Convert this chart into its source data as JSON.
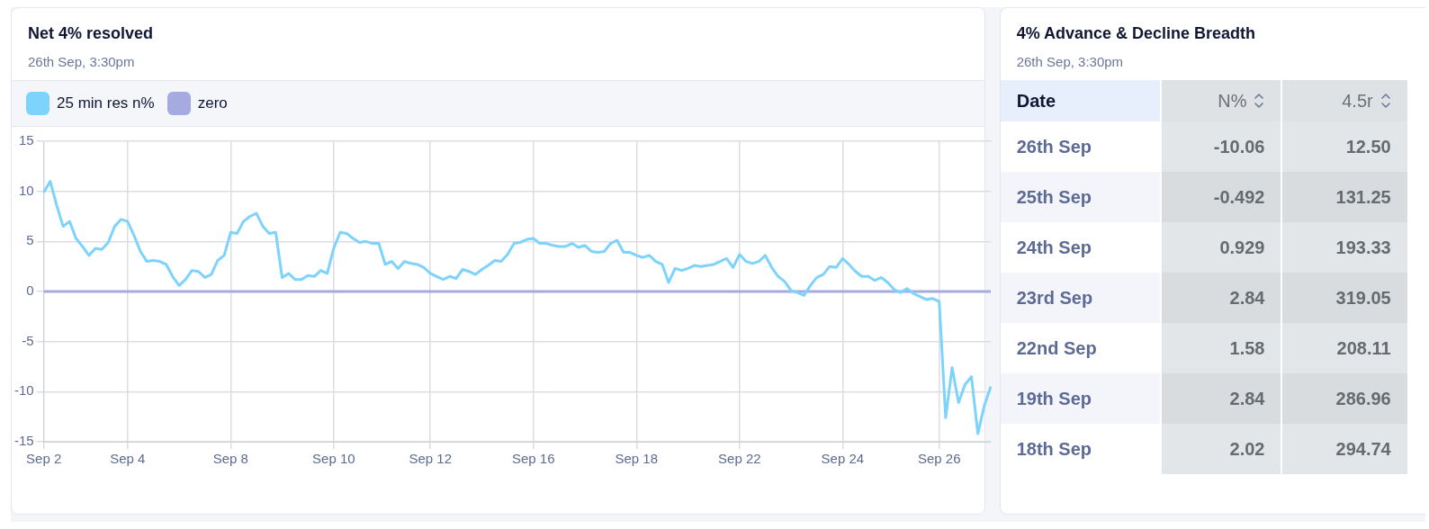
{
  "chart_data": [
    {
      "type": "line",
      "title": "Net 4% resolved",
      "subtitle": "26th Sep, 3:30pm",
      "legend": "top left",
      "grid": true,
      "ylim": [
        -15,
        15
      ],
      "yticks": [
        15,
        10,
        5,
        0,
        -5,
        -10,
        -15
      ],
      "categories": [
        "Sep 2",
        null,
        null,
        null,
        null,
        null,
        null,
        null,
        null,
        null,
        null,
        null,
        null,
        "Sep 4",
        null,
        null,
        null,
        null,
        null,
        null,
        null,
        null,
        null,
        null,
        null,
        null,
        null,
        null,
        null,
        "Sep 8",
        null,
        null,
        null,
        null,
        null,
        null,
        null,
        null,
        null,
        null,
        null,
        null,
        null,
        null,
        null,
        "Sep 10",
        null,
        null,
        null,
        null,
        null,
        null,
        null,
        null,
        null,
        null,
        null,
        null,
        null,
        null,
        "Sep 12",
        null,
        null,
        null,
        null,
        null,
        null,
        null,
        null,
        null,
        null,
        null,
        null,
        null,
        null,
        null,
        "Sep 16",
        null,
        null,
        null,
        null,
        null,
        null,
        null,
        null,
        null,
        null,
        null,
        null,
        null,
        null,
        null,
        "Sep 18",
        null,
        null,
        null,
        null,
        null,
        null,
        null,
        null,
        null,
        null,
        null,
        null,
        null,
        null,
        null,
        "Sep 22",
        null,
        null,
        null,
        null,
        null,
        null,
        null,
        null,
        null,
        null,
        null,
        null,
        null,
        null,
        null,
        "Sep 24",
        null,
        null,
        null,
        null,
        null,
        null,
        null,
        null,
        null,
        null,
        null,
        null,
        null,
        null,
        "Sep 26",
        null,
        null,
        null,
        null,
        null,
        null,
        null,
        null
      ],
      "series": [
        {
          "name": "25 min res n%",
          "color": "#7dd3fc",
          "values": [
            9.9,
            11.0,
            8.6,
            6.5,
            7.0,
            5.3,
            4.5,
            3.6,
            4.3,
            4.2,
            4.9,
            6.5,
            7.2,
            7.0,
            5.6,
            4.0,
            3.0,
            3.1,
            3.0,
            2.7,
            1.5,
            0.6,
            1.2,
            2.1,
            2.0,
            1.4,
            1.7,
            3.1,
            3.6,
            5.9,
            5.8,
            7.0,
            7.5,
            7.8,
            6.5,
            5.8,
            5.9,
            1.4,
            1.8,
            1.2,
            1.2,
            1.6,
            1.5,
            2.1,
            1.8,
            4.3,
            5.9,
            5.8,
            5.3,
            4.9,
            5.0,
            4.8,
            4.8,
            2.7,
            3.0,
            2.3,
            3.0,
            2.8,
            2.7,
            2.4,
            1.8,
            1.5,
            1.2,
            1.5,
            1.3,
            2.2,
            2.0,
            1.7,
            2.2,
            2.6,
            3.1,
            3.0,
            3.7,
            4.8,
            4.9,
            5.2,
            5.3,
            4.8,
            4.8,
            4.6,
            4.5,
            4.5,
            4.8,
            4.4,
            4.6,
            4.0,
            3.9,
            4.0,
            4.8,
            5.1,
            3.9,
            3.9,
            3.6,
            3.4,
            3.6,
            3.0,
            2.7,
            0.9,
            2.3,
            2.1,
            2.3,
            2.6,
            2.5,
            2.6,
            2.7,
            3.0,
            3.3,
            2.4,
            3.7,
            3.0,
            2.8,
            3.0,
            3.6,
            2.4,
            1.5,
            1.0,
            0.1,
            -0.1,
            -0.4,
            0.6,
            1.4,
            1.7,
            2.5,
            2.4,
            3.3,
            2.7,
            2.0,
            1.5,
            1.5,
            1.1,
            1.4,
            0.9,
            0.2,
            -0.1,
            0.3,
            -0.2,
            -0.5,
            -0.8,
            -0.7,
            -1.0,
            -12.6,
            -7.6,
            -11.1,
            -9.3,
            -8.5,
            -14.2,
            -11.4,
            -9.5
          ]
        },
        {
          "name": "zero",
          "color": "#a5abe0",
          "values": [
            0,
            0,
            0,
            0,
            0,
            0,
            0,
            0,
            0,
            0,
            0,
            0,
            0,
            0,
            0,
            0,
            0,
            0,
            0,
            0,
            0,
            0,
            0,
            0,
            0,
            0,
            0,
            0,
            0,
            0,
            0,
            0,
            0,
            0,
            0,
            0,
            0,
            0,
            0,
            0,
            0,
            0,
            0,
            0,
            0,
            0,
            0,
            0,
            0,
            0,
            0,
            0,
            0,
            0,
            0,
            0,
            0,
            0,
            0,
            0,
            0,
            0,
            0,
            0,
            0,
            0,
            0,
            0,
            0,
            0,
            0,
            0,
            0,
            0,
            0,
            0,
            0,
            0,
            0,
            0,
            0,
            0,
            0,
            0,
            0,
            0,
            0,
            0,
            0,
            0,
            0,
            0,
            0,
            0,
            0,
            0,
            0,
            0,
            0,
            0,
            0,
            0,
            0,
            0,
            0,
            0,
            0,
            0,
            0,
            0,
            0,
            0,
            0,
            0,
            0,
            0,
            0,
            0,
            0,
            0,
            0,
            0,
            0,
            0,
            0,
            0,
            0,
            0,
            0,
            0,
            0,
            0,
            0,
            0,
            0,
            0,
            0,
            0,
            0,
            0,
            0,
            0,
            0,
            0,
            0,
            0,
            0,
            0
          ]
        }
      ]
    },
    {
      "type": "other",
      "title": "4% Advance & Decline Breadth",
      "subtitle": "26th Sep, 3:30pm",
      "categories": [
        "Date",
        "N%",
        "4.5r"
      ],
      "y_categories": [
        "26th Sep",
        "25th Sep",
        "24th Sep",
        "23rd Sep",
        "22nd Sep",
        "19th Sep",
        "18th Sep"
      ],
      "cell_labels": [
        [
          "-10.06",
          "12.50"
        ],
        [
          "-0.492",
          "131.25"
        ],
        [
          "0.929",
          "193.33"
        ],
        [
          "2.84",
          "319.05"
        ],
        [
          "1.58",
          "208.11"
        ],
        [
          "2.84",
          "286.96"
        ],
        [
          "2.02",
          "294.74"
        ]
      ]
    }
  ]
}
